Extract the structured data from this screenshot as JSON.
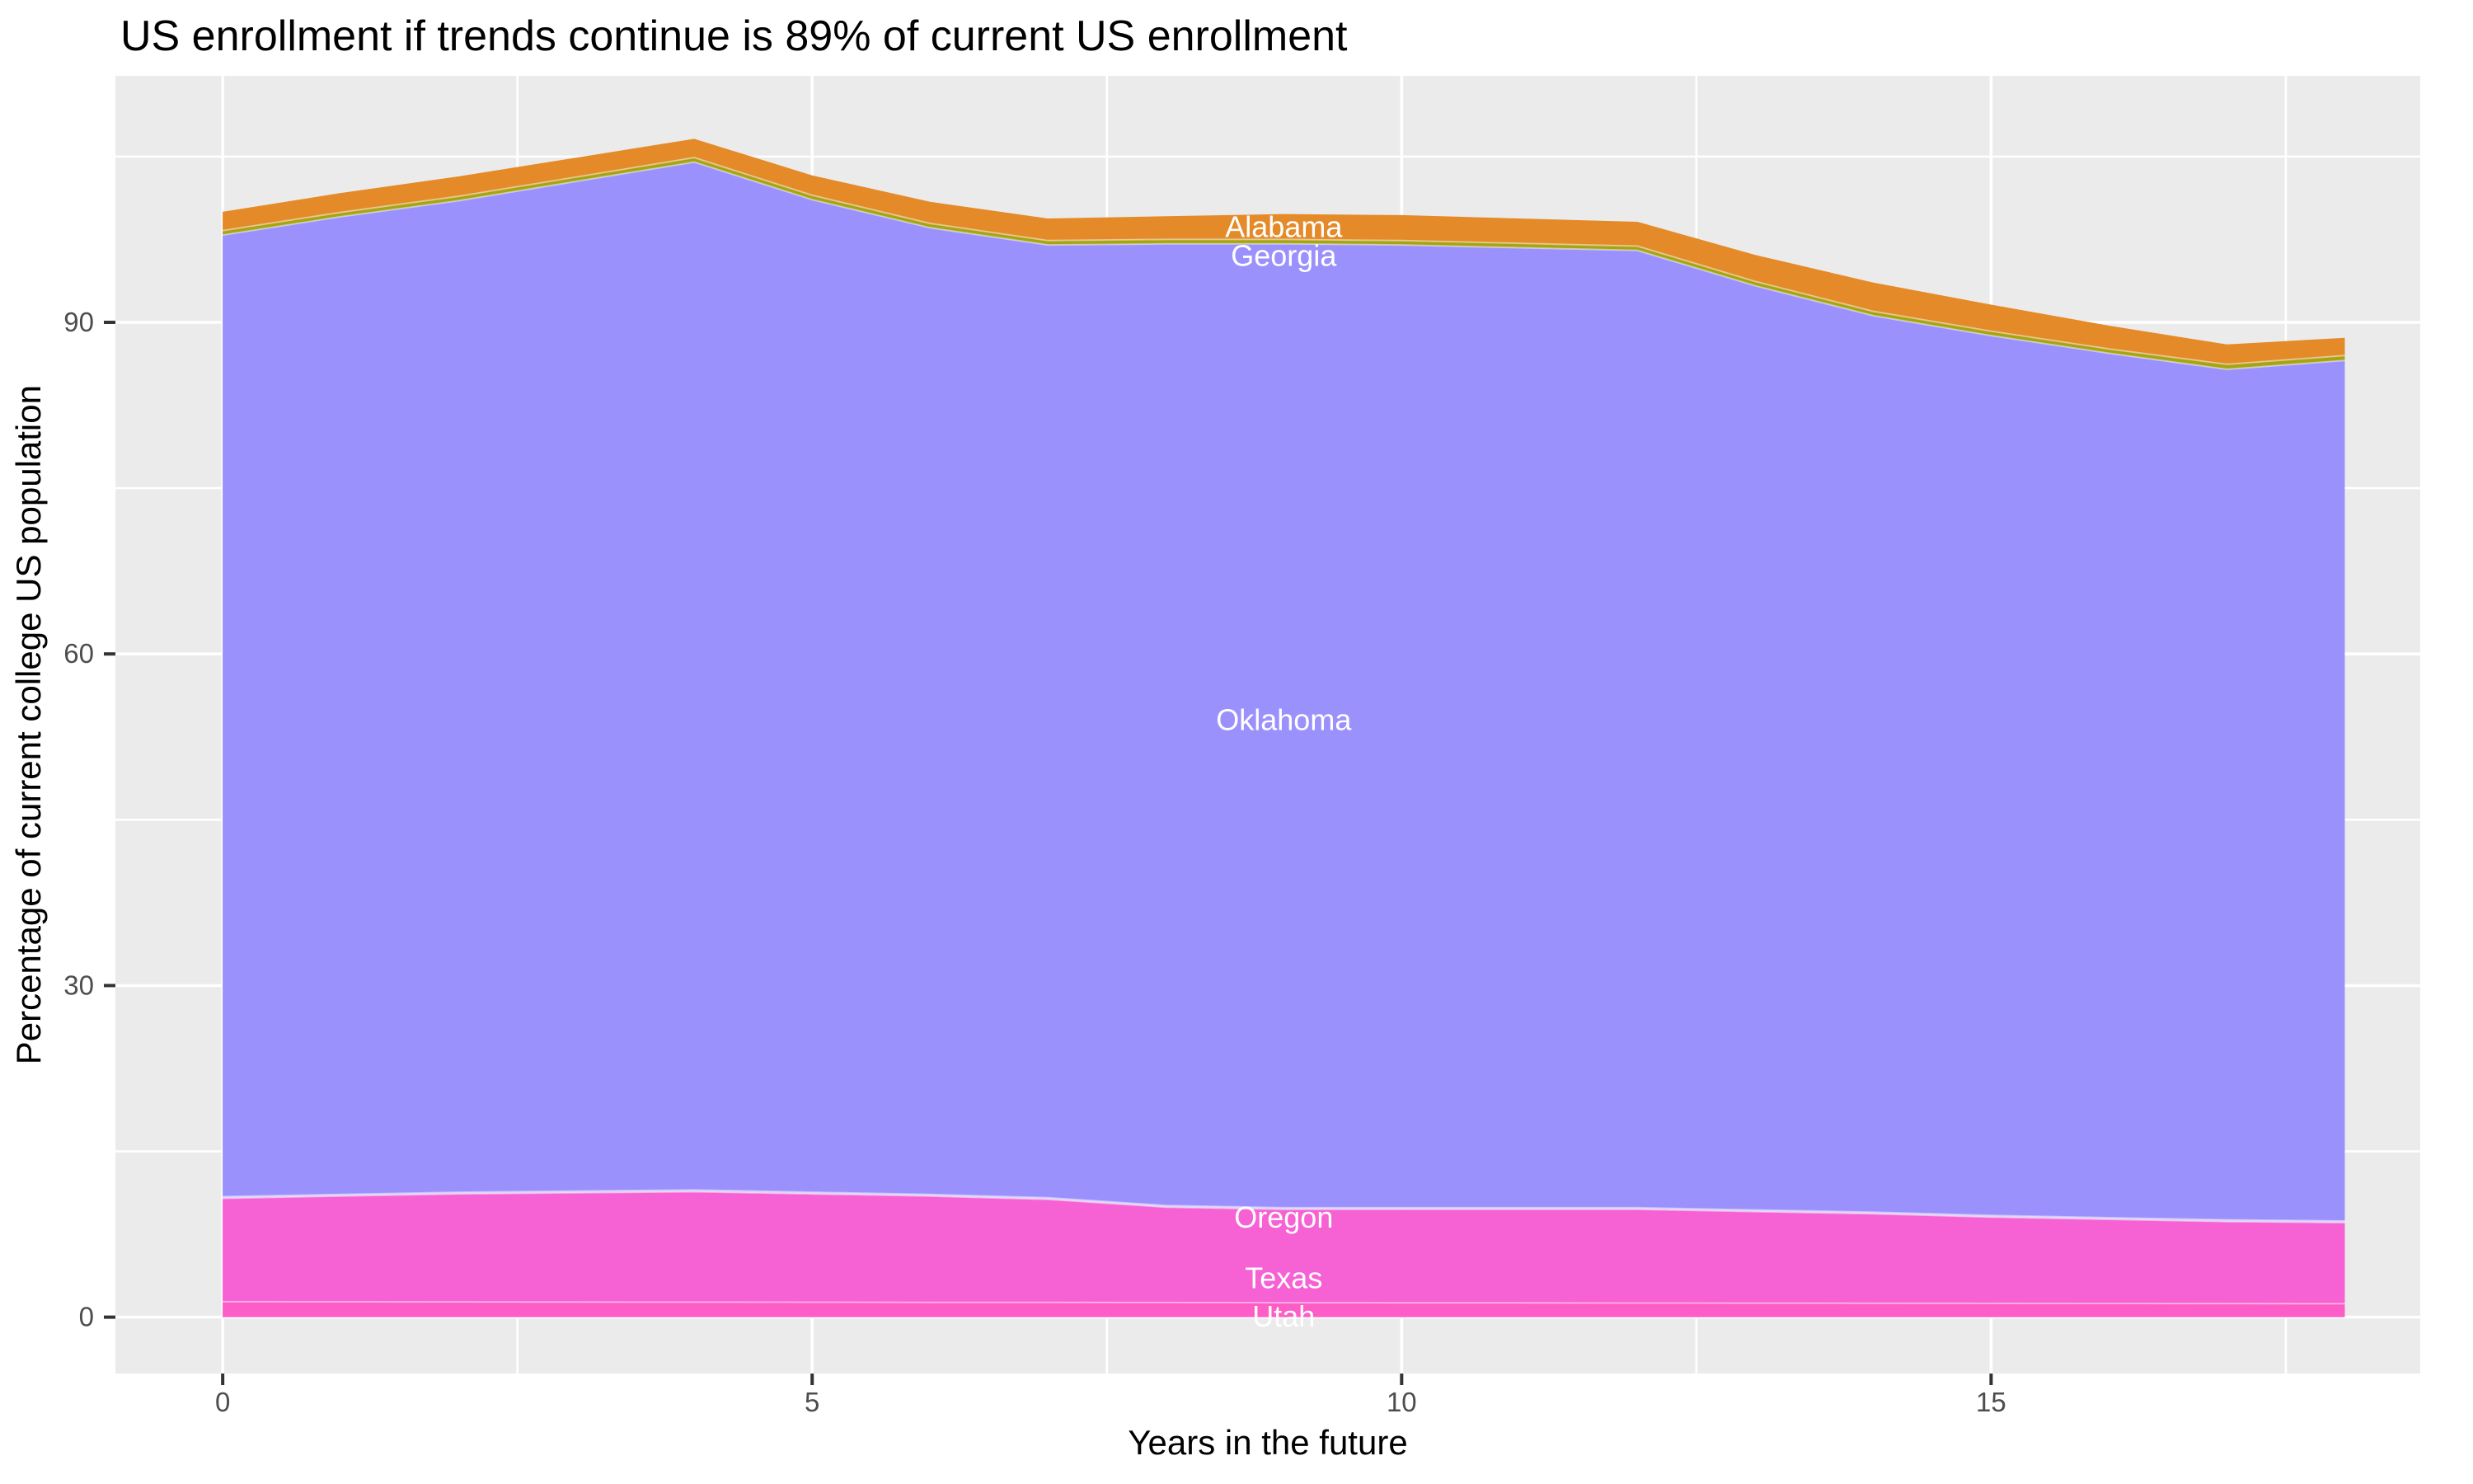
{
  "title": "US enrollment if trends continue is 89% of current US enrollment",
  "x_axis": {
    "label": "Years in the future",
    "tick_labels": [
      "0",
      "5",
      "10",
      "15"
    ]
  },
  "y_axis": {
    "label": "Percentage of current college US population",
    "tick_labels": [
      "0",
      "30",
      "60",
      "90"
    ]
  },
  "chart_data": {
    "type": "area",
    "stacked": true,
    "title": "US enrollment if trends continue is 89% of current US enrollment",
    "xlabel": "Years in the future",
    "ylabel": "Percentage of current college US population",
    "x": [
      0,
      1,
      2,
      3,
      4,
      5,
      6,
      7,
      8,
      9,
      10,
      11,
      12,
      13,
      14,
      15,
      16,
      17,
      18
    ],
    "series": [
      {
        "name": "Utah",
        "color": "#FC5DC6",
        "values": [
          1.4,
          1.39,
          1.38,
          1.37,
          1.36,
          1.35,
          1.34,
          1.33,
          1.32,
          1.31,
          1.3,
          1.29,
          1.28,
          1.27,
          1.26,
          1.25,
          1.24,
          1.23,
          1.22
        ]
      },
      {
        "name": "Texas",
        "color": "#F661D4",
        "values": [
          9.35,
          9.56,
          9.77,
          9.88,
          9.99,
          9.8,
          9.61,
          9.32,
          8.63,
          8.44,
          8.45,
          8.46,
          8.47,
          8.28,
          8.09,
          7.8,
          7.61,
          7.42,
          7.33
        ]
      },
      {
        "name": "Oregon",
        "color": "#C9B8F2",
        "values": [
          0.15,
          0.15,
          0.15,
          0.15,
          0.15,
          0.15,
          0.15,
          0.15,
          0.15,
          0.15,
          0.15,
          0.15,
          0.15,
          0.15,
          0.15,
          0.15,
          0.15,
          0.15,
          0.15
        ]
      },
      {
        "name": "Oklahoma",
        "color": "#9B91FC",
        "values": [
          87.0,
          88.45,
          89.7,
          91.35,
          93.0,
          89.8,
          87.45,
          86.2,
          87.0,
          87.2,
          87.1,
          86.85,
          86.6,
          83.6,
          81.1,
          79.6,
          78.2,
          76.95,
          77.85
        ]
      },
      {
        "name": "Georgia",
        "color": "#A6A414",
        "values": [
          0.4,
          0.4,
          0.4,
          0.4,
          0.4,
          0.4,
          0.4,
          0.4,
          0.4,
          0.4,
          0.4,
          0.4,
          0.4,
          0.4,
          0.4,
          0.4,
          0.4,
          0.45,
          0.45
        ]
      },
      {
        "name": "Alabama",
        "color": "#E58A28",
        "values": [
          1.7,
          1.75,
          1.8,
          1.75,
          1.7,
          1.8,
          1.95,
          2.0,
          2.1,
          2.3,
          2.3,
          2.25,
          2.2,
          2.4,
          2.6,
          2.4,
          2.1,
          1.8,
          1.6
        ]
      }
    ],
    "stack_totals": [
      100.0,
      101.7,
      103.2,
      104.9,
      106.6,
      103.3,
      100.9,
      99.4,
      99.6,
      99.8,
      99.7,
      99.4,
      99.1,
      96.1,
      93.6,
      91.6,
      89.7,
      88.0,
      88.6
    ],
    "area_labels": [
      {
        "text": "Alabama",
        "x": 9,
        "y": 98.6
      },
      {
        "text": "Georgia",
        "x": 9,
        "y": 96.0
      },
      {
        "text": "Oklahoma",
        "x": 9,
        "y": 54.0
      },
      {
        "text": "Oregon",
        "x": 9,
        "y": 9.0
      },
      {
        "text": "Texas",
        "x": 9,
        "y": 3.5
      },
      {
        "text": "Utah",
        "x": 9,
        "y": 0.05
      }
    ],
    "xlim": [
      -0.91,
      18.64
    ],
    "ylim": [
      -5.1,
      112.3
    ],
    "x_major": [
      0,
      5,
      10,
      15
    ],
    "x_minor": [
      2.5,
      7.5,
      12.5,
      17.5
    ],
    "y_major": [
      0,
      30,
      60,
      90
    ],
    "y_minor": [
      15,
      45,
      75,
      105
    ],
    "x_tick_labels": [
      "0",
      "5",
      "10",
      "15"
    ],
    "y_tick_labels": [
      "0",
      "30",
      "60",
      "90"
    ],
    "legend_position": "none",
    "grid": true,
    "panel_bg": "#EBEBEB",
    "grid_color": "#FFFFFF",
    "area_label_color": "#FFFFFF",
    "tick_text_color": "#4D4D4D",
    "tick_mark_color": "#333333"
  }
}
